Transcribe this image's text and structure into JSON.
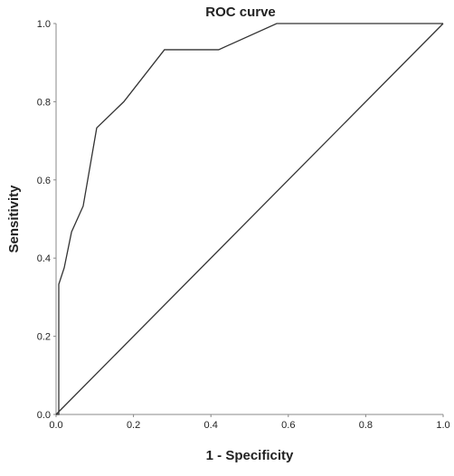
{
  "chart_data": {
    "type": "line",
    "title": "ROC curve",
    "xlabel": "1 - Specificity",
    "ylabel": "Sensitivity",
    "xlim": [
      0,
      1
    ],
    "ylim": [
      0,
      1
    ],
    "x_ticks": [
      "0.0",
      "0.2",
      "0.4",
      "0.6",
      "0.8",
      "1.0"
    ],
    "y_ticks": [
      "0.0",
      "0.2",
      "0.4",
      "0.6",
      "0.8",
      "1.0"
    ],
    "grid": false,
    "legend": "none",
    "series": [
      {
        "x": [
          0.0,
          0.0,
          0.007,
          0.007,
          0.021,
          0.04,
          0.07,
          0.105,
          0.175,
          0.28,
          0.42,
          0.57,
          1.0
        ],
        "y": [
          0.0,
          0.0,
          0.0,
          0.333,
          0.375,
          0.467,
          0.533,
          0.733,
          0.8,
          0.933,
          0.933,
          1.0,
          1.0
        ],
        "color": "#333333"
      },
      {
        "x": [
          0.0,
          1.0
        ],
        "y": [
          0.0,
          1.0
        ],
        "color": "#333333"
      }
    ]
  }
}
